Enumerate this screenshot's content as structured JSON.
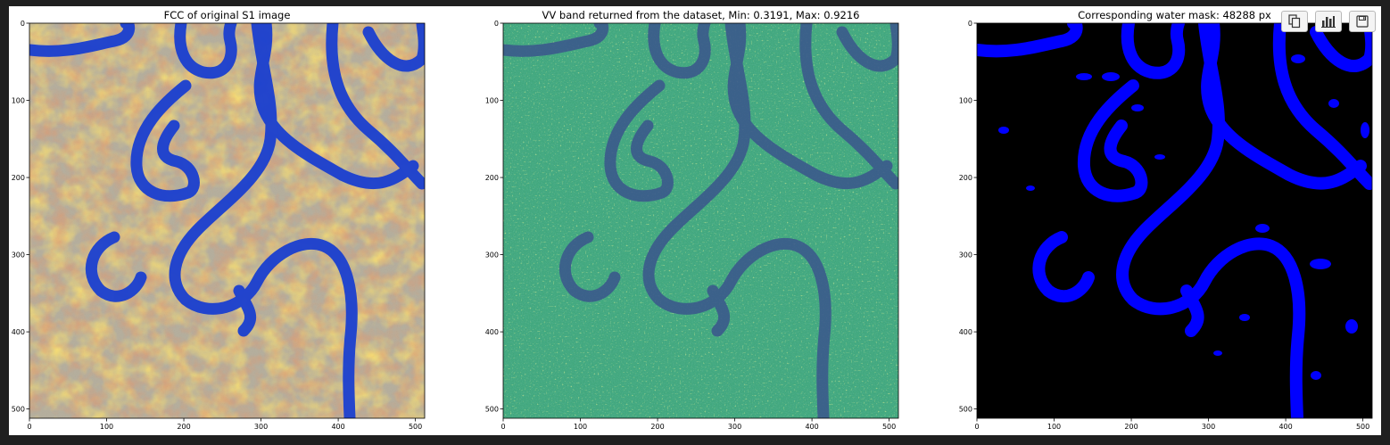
{
  "panels": [
    {
      "title": "FCC of original S1 image",
      "kind": "fcc",
      "x_ticks": [
        "0",
        "100",
        "200",
        "300",
        "400",
        "500"
      ],
      "y_ticks": [
        "0",
        "100",
        "200",
        "300",
        "400",
        "500"
      ]
    },
    {
      "title": "VV band returned from the dataset, Min: 0.3191, Max: 0.9216",
      "kind": "vv",
      "x_ticks": [
        "0",
        "100",
        "200",
        "300",
        "400",
        "500"
      ],
      "y_ticks": [
        "0",
        "100",
        "200",
        "300",
        "400",
        "500"
      ]
    },
    {
      "title": "Corresponding water mask: 48288 px",
      "kind": "mask",
      "x_ticks": [
        "0",
        "100",
        "200",
        "300",
        "400",
        "500"
      ],
      "y_ticks": [
        "0",
        "100",
        "200",
        "300",
        "400",
        "500"
      ]
    }
  ],
  "colors": {
    "fcc_water": "#1a3fd0",
    "fcc_base": "#a8a08c",
    "vv_base": "#2e9c8c",
    "vv_water": "#3b5a8c",
    "mask_bg": "#000000",
    "mask_water": "#0000ff"
  },
  "toolbar": {
    "icons": [
      "copy-icon",
      "bar-chart-icon",
      "save-icon"
    ]
  }
}
